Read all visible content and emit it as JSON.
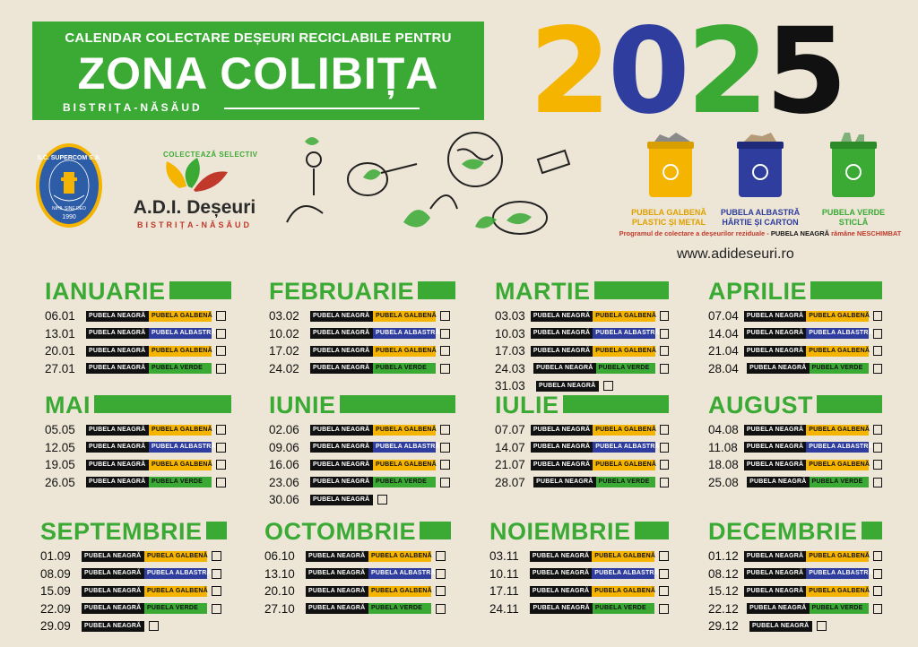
{
  "header": {
    "line1": "CALENDAR COLECTARE DEȘEURI RECICLABILE PENTRU",
    "line2": "ZONA COLIBIȚA",
    "sub": "BISTRIȚA-NĂSĂUD"
  },
  "year": {
    "digits": [
      "2",
      "0",
      "2",
      "5"
    ],
    "colors": [
      "#f5b400",
      "#2e3d9e",
      "#3aaa35",
      "#111111"
    ]
  },
  "logos": {
    "supercom": {
      "top_text": "S.C. SUPERCOM S.A.",
      "motto": "NIHIL SINE DEO",
      "year": "1990"
    },
    "adi": {
      "arc_text": "COLECTEAZĂ SELECTIV",
      "name": "A.D.I. Deșeuri",
      "sub": "BISTRIȚA-NĂSĂUD"
    }
  },
  "bins": [
    {
      "label1": "PUBELA GALBENĂ",
      "label2": "PLASTIC ȘI METAL",
      "color": "#f5b400"
    },
    {
      "label1": "PUBELA ALBASTRĂ",
      "label2": "HÂRTIE ȘI CARTON",
      "color": "#2e3d9e"
    },
    {
      "label1": "PUBELA VERDE",
      "label2": "STICLĂ",
      "color": "#3aaa35"
    }
  ],
  "bins_note": {
    "prefix": "Programul de colectare a deșeurilor reziduale -",
    "bold": "PUBELA NEAGRĂ",
    "suffix": "rămâne NESCHIMBAT"
  },
  "website": "www.adideseuri.ro",
  "tag_labels": {
    "neagra": "PUBELA NEAGRĂ",
    "galbena": "PUBELA GALBENĂ",
    "albastra": "PUBELA ALBASTRĂ",
    "verde": "PUBELA VERDE"
  },
  "months": [
    {
      "name": "IANUARIE",
      "rows": [
        [
          "06.01",
          "galbena"
        ],
        [
          "13.01",
          "albastra"
        ],
        [
          "20.01",
          "galbena"
        ],
        [
          "27.01",
          "verde"
        ]
      ]
    },
    {
      "name": "FEBRUARIE",
      "rows": [
        [
          "03.02",
          "galbena"
        ],
        [
          "10.02",
          "albastra"
        ],
        [
          "17.02",
          "galbena"
        ],
        [
          "24.02",
          "verde"
        ]
      ]
    },
    {
      "name": "MARTIE",
      "rows": [
        [
          "03.03",
          "galbena"
        ],
        [
          "10.03",
          "albastra"
        ],
        [
          "17.03",
          "galbena"
        ],
        [
          "24.03",
          "verde"
        ],
        [
          "31.03",
          ""
        ]
      ]
    },
    {
      "name": "APRILIE",
      "rows": [
        [
          "07.04",
          "galbena"
        ],
        [
          "14.04",
          "albastra"
        ],
        [
          "21.04",
          "galbena"
        ],
        [
          "28.04",
          "verde"
        ]
      ]
    },
    {
      "name": "MAI",
      "rows": [
        [
          "05.05",
          "galbena"
        ],
        [
          "12.05",
          "albastra"
        ],
        [
          "19.05",
          "galbena"
        ],
        [
          "26.05",
          "verde"
        ]
      ]
    },
    {
      "name": "IUNIE",
      "rows": [
        [
          "02.06",
          "galbena"
        ],
        [
          "09.06",
          "albastra"
        ],
        [
          "16.06",
          "galbena"
        ],
        [
          "23.06",
          "verde"
        ],
        [
          "30.06",
          ""
        ]
      ]
    },
    {
      "name": "IULIE",
      "rows": [
        [
          "07.07",
          "galbena"
        ],
        [
          "14.07",
          "albastra"
        ],
        [
          "21.07",
          "galbena"
        ],
        [
          "28.07",
          "verde"
        ]
      ]
    },
    {
      "name": "AUGUST",
      "rows": [
        [
          "04.08",
          "galbena"
        ],
        [
          "11.08",
          "albastra"
        ],
        [
          "18.08",
          "galbena"
        ],
        [
          "25.08",
          "verde"
        ]
      ]
    },
    {
      "name": "SEPTEMBRIE",
      "rows": [
        [
          "01.09",
          "galbena"
        ],
        [
          "08.09",
          "albastra"
        ],
        [
          "15.09",
          "galbena"
        ],
        [
          "22.09",
          "verde"
        ],
        [
          "29.09",
          ""
        ]
      ]
    },
    {
      "name": "OCTOMBRIE",
      "rows": [
        [
          "06.10",
          "galbena"
        ],
        [
          "13.10",
          "albastra"
        ],
        [
          "20.10",
          "galbena"
        ],
        [
          "27.10",
          "verde"
        ]
      ]
    },
    {
      "name": "NOIEMBRIE",
      "rows": [
        [
          "03.11",
          "galbena"
        ],
        [
          "10.11",
          "albastra"
        ],
        [
          "17.11",
          "galbena"
        ],
        [
          "24.11",
          "verde"
        ]
      ]
    },
    {
      "name": "DECEMBRIE",
      "rows": [
        [
          "01.12",
          "galbena"
        ],
        [
          "08.12",
          "albastra"
        ],
        [
          "15.12",
          "galbena"
        ],
        [
          "22.12",
          "verde"
        ],
        [
          "29.12",
          ""
        ]
      ]
    }
  ]
}
